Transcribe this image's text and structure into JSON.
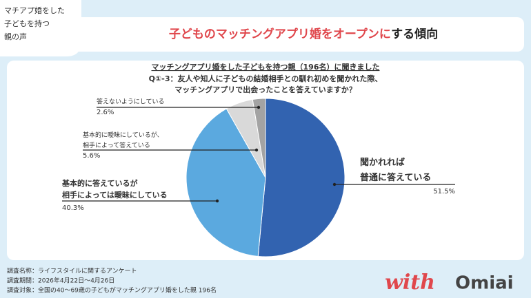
{
  "header": {
    "badge": [
      "マチアプ婚をした",
      "子どもを持つ",
      "親の声"
    ],
    "title_highlight": "子どものマッチングアプリ婚をオープンに",
    "title_rest": "する傾向"
  },
  "chart_data": {
    "type": "pie",
    "title": [
      "マッチングアプリ婚をした子どもを持つ親（196名）に聞きました",
      "Q①-3：友人や知人に子どもの結婚相手との馴れ初めを聞かれた際、",
      "マッチングアプリで出会ったことを答えていますか？"
    ],
    "categories": [
      "聞かれれば\n普通に答えている",
      "基本的に答えているが\n相手によっては曖昧にしている",
      "基本的に曖昧にしているが、\n相手によって答えている",
      "答えないようにしている"
    ],
    "values": [
      51.5,
      40.3,
      5.6,
      2.6
    ],
    "value_labels": [
      "51.5%",
      "40.3%",
      "5.6%",
      "2.6%"
    ],
    "colors": [
      "#3263b0",
      "#5ba9df",
      "#d9d9d9",
      "#a3a3a3"
    ]
  },
  "footer": [
    "調査名称：ライフスタイルに関するアンケート",
    "調査期間：2026年4月22日～4月26日",
    "調査対象：全国の40～69歳の子どもがマッチングアプリ婚をした親 196名"
  ],
  "logo": {
    "script": "with",
    "name": "Omiai"
  }
}
